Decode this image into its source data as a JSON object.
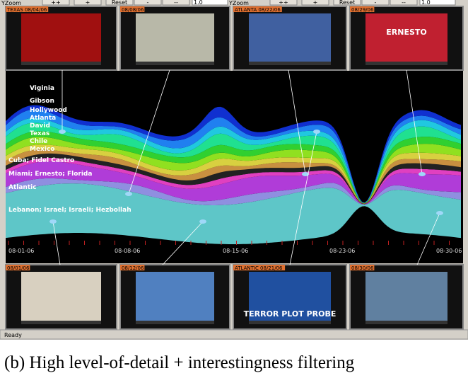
{
  "toolbar": {
    "left": {
      "zoom": "YZoom",
      "buttons": [
        "++",
        "+",
        "Reset",
        "-",
        "--"
      ],
      "value": "1.0"
    },
    "right": {
      "zoom": "YZoom",
      "buttons": [
        "++",
        "+",
        "Reset",
        "-",
        "--"
      ],
      "value": "1.0"
    }
  },
  "top_thumbnails": [
    {
      "label": "TEXAS 08/04/06"
    },
    {
      "label": "08/08/06"
    },
    {
      "label": "ATLANTA 08/22/06"
    },
    {
      "label": "08/29/06",
      "overlay": "ERNESTO"
    }
  ],
  "bottom_thumbnails": [
    {
      "label": "08/01/06"
    },
    {
      "label": "08/12/06"
    },
    {
      "label": "ATLANTIC 08/21/06",
      "overlay": "TERROR PLOT PROBE"
    },
    {
      "label": "08/30/06"
    }
  ],
  "topics": [
    "Viginia",
    "Gibson",
    "Hollywood",
    "Atlanta",
    "David",
    "Texas",
    "Chile",
    "Mexico",
    "Cuba; Fidel Castro",
    "Miami; Ernesto; Florida",
    "Atlantic",
    "Lebanon; Israel; Israeli; Hezbollah"
  ],
  "dates": [
    "08-01-06",
    "08-08-06",
    "08-15-06",
    "08-23-06",
    "08-30-06"
  ],
  "status": "Ready",
  "caption": "(b)  High level-of-detail + interestingness filtering"
}
